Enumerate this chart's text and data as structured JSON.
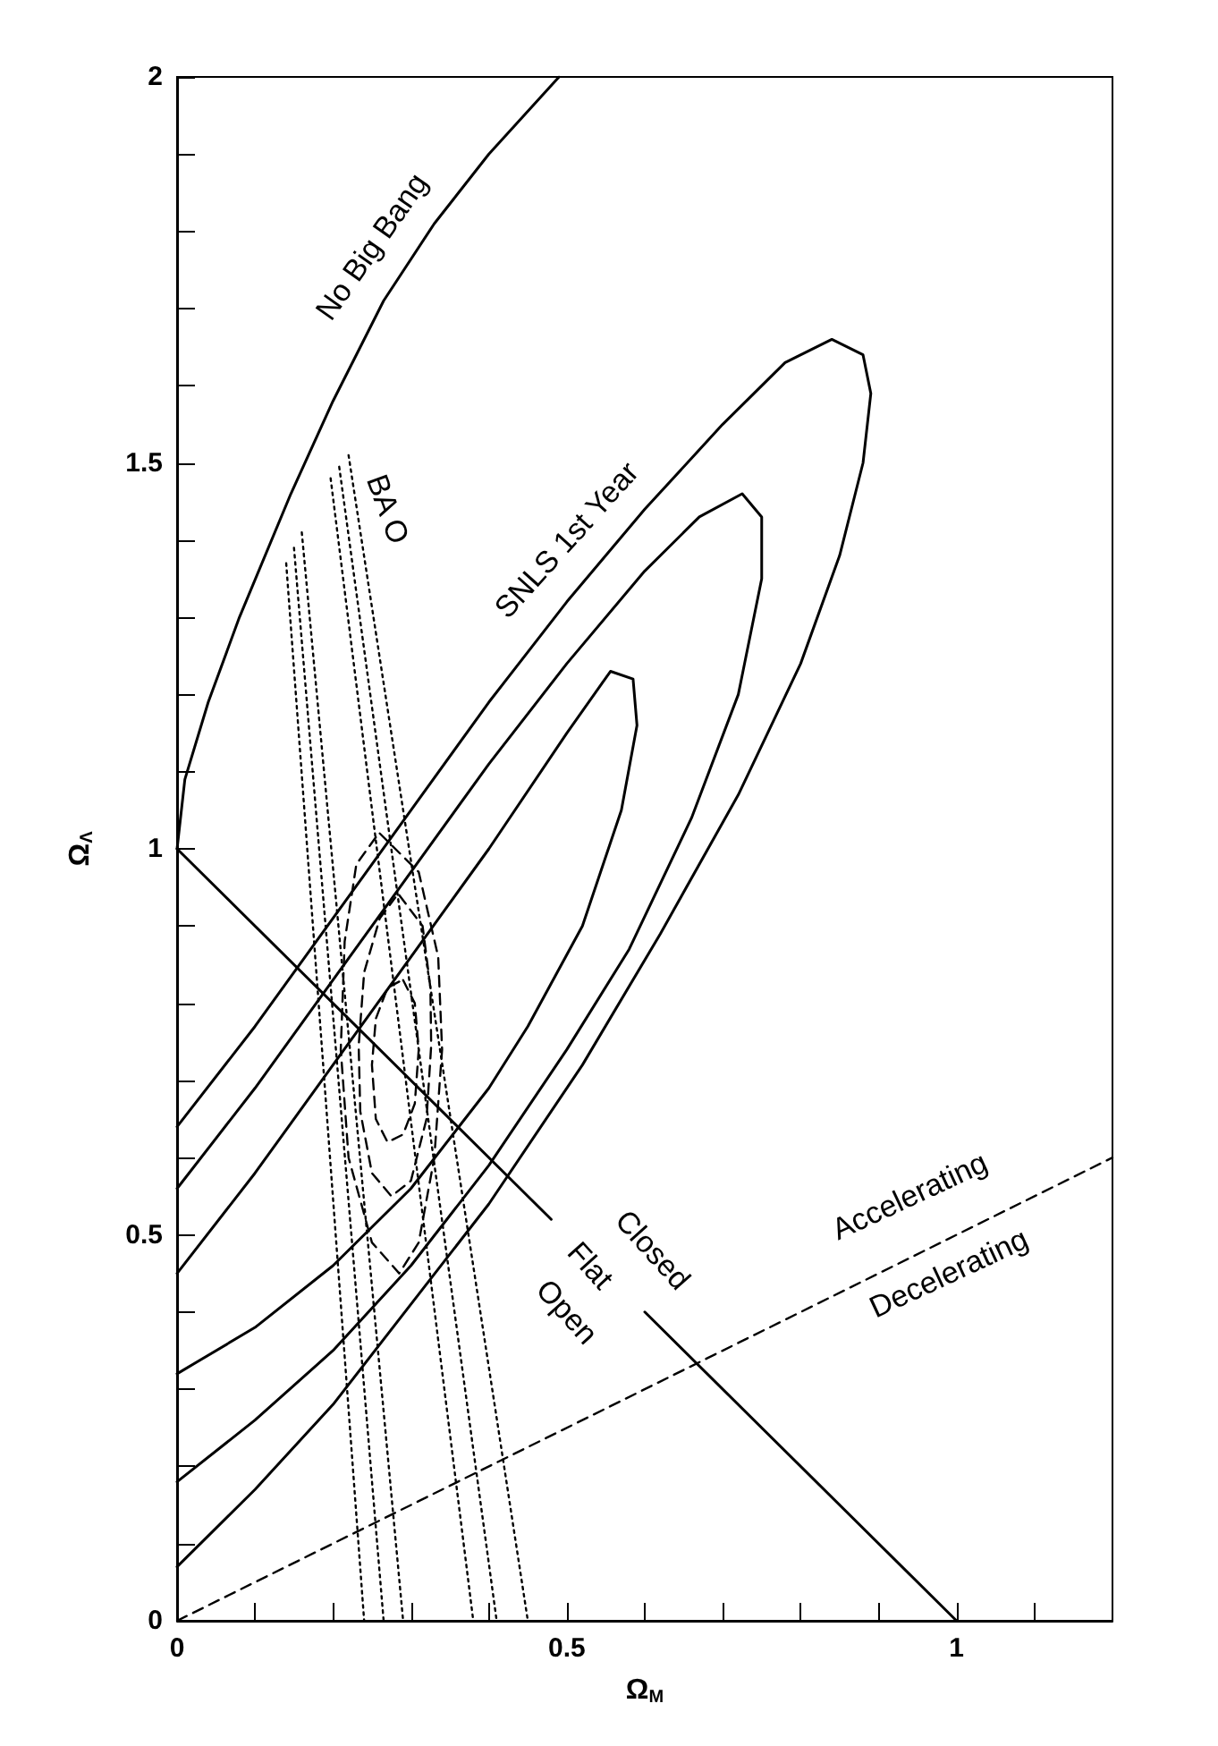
{
  "chart_data": {
    "type": "line",
    "xlabel": "Ω$_{M}$",
    "ylabel": "Ω$_{Λ}$",
    "xlim": [
      0,
      1.2
    ],
    "ylim": [
      0,
      2
    ],
    "xticks": [
      0,
      {
        "value": 0.1,
        "label": null
      },
      {
        "value": 0.2,
        "label": null
      },
      {
        "value": 0.3,
        "label": null
      },
      {
        "value": 0.4,
        "label": null
      },
      0.5,
      {
        "value": 0.6,
        "label": null
      },
      {
        "value": 0.7,
        "label": null
      },
      {
        "value": 0.8,
        "label": null
      },
      {
        "value": 0.9,
        "label": null
      },
      1,
      {
        "value": 1.1,
        "label": null
      }
    ],
    "yticks": [
      0,
      {
        "value": 0.1,
        "label": null
      },
      {
        "value": 0.2,
        "label": null
      },
      {
        "value": 0.3,
        "label": null
      },
      {
        "value": 0.4,
        "label": null
      },
      0.5,
      {
        "value": 0.6,
        "label": null
      },
      {
        "value": 0.7,
        "label": null
      },
      {
        "value": 0.8,
        "label": null
      },
      {
        "value": 0.9,
        "label": null
      },
      1,
      {
        "value": 1.1,
        "label": null
      },
      {
        "value": 1.2,
        "label": null
      },
      {
        "value": 1.3,
        "label": null
      },
      {
        "value": 1.4,
        "label": null
      },
      1.5,
      {
        "value": 1.6,
        "label": null
      },
      {
        "value": 1.7,
        "label": null
      },
      {
        "value": 1.8,
        "label": null
      },
      {
        "value": 1.9,
        "label": null
      },
      2
    ],
    "marker": "none",
    "series": [
      {
        "color": "#000000",
        "line_style": "solid",
        "x": [
          0,
          0.01,
          0.04,
          0.08,
          0.146,
          0.2,
          0.265,
          0.33,
          0.4,
          0.49
        ],
        "values": [
          1.0,
          1.09,
          1.19,
          1.3,
          1.46,
          1.58,
          1.71,
          1.81,
          1.9,
          2.0
        ]
      },
      {
        "color": "#000000",
        "line_style": "solid",
        "x": [
          0,
          0.48,
          0.54,
          0.6,
          1
        ],
        "values": [
          1,
          0.52,
          null,
          0.4,
          0
        ]
      },
      {
        "color": "#000000",
        "line_style": "dashed",
        "x": [
          0,
          1.2
        ],
        "values": [
          0,
          0.6
        ]
      },
      {
        "color": "#000000",
        "line_style": "solid",
        "x": [
          0,
          0.1,
          0.2,
          0.3,
          0.4,
          0.5,
          0.6,
          0.7,
          0.78,
          0.84,
          0.88,
          0.89,
          0.88,
          0.85,
          0.8,
          0.72,
          0.62,
          0.52,
          0.4,
          0.3,
          0.2,
          0.1,
          0
        ],
        "values": [
          0.64,
          0.77,
          0.91,
          1.05,
          1.19,
          1.32,
          1.44,
          1.55,
          1.63,
          1.66,
          1.64,
          1.59,
          1.5,
          1.38,
          1.24,
          1.07,
          0.89,
          0.72,
          0.54,
          0.41,
          0.28,
          0.17,
          0.07
        ]
      },
      {
        "color": "#000000",
        "line_style": "solid",
        "x": [
          0,
          0.1,
          0.2,
          0.3,
          0.4,
          0.5,
          0.6,
          0.67,
          0.725,
          0.75,
          0.75,
          0.72,
          0.66,
          0.58,
          0.5,
          0.4,
          0.3,
          0.2,
          0.1,
          0
        ],
        "values": [
          0.56,
          0.69,
          0.83,
          0.97,
          1.11,
          1.24,
          1.36,
          1.43,
          1.46,
          1.43,
          1.35,
          1.2,
          1.04,
          0.87,
          0.74,
          0.59,
          0.46,
          0.35,
          0.26,
          0.18
        ]
      },
      {
        "color": "#000000",
        "line_style": "solid",
        "x": [
          0,
          0.1,
          0.2,
          0.3,
          0.4,
          0.5,
          0.556,
          0.585,
          0.59,
          0.57,
          0.52,
          0.45,
          0.4,
          0.3,
          0.2,
          0.1,
          0
        ],
        "values": [
          0.45,
          0.58,
          0.72,
          0.86,
          1.0,
          1.15,
          1.23,
          1.22,
          1.16,
          1.05,
          0.9,
          0.77,
          0.69,
          0.56,
          0.46,
          0.38,
          0.32
        ]
      },
      {
        "color": "#000000",
        "line_style": "dotted",
        "x": [
          0.14,
          0.24
        ],
        "values": [
          1.37,
          0
        ]
      },
      {
        "color": "#000000",
        "line_style": "dotted",
        "x": [
          0.15,
          0.265
        ],
        "values": [
          1.39,
          0
        ]
      },
      {
        "color": "#000000",
        "line_style": "dotted",
        "x": [
          0.16,
          0.29
        ],
        "values": [
          1.41,
          0
        ]
      },
      {
        "color": "#000000",
        "line_style": "dotted",
        "x": [
          0.197,
          0.38
        ],
        "values": [
          1.48,
          0
        ]
      },
      {
        "color": "#000000",
        "line_style": "dotted",
        "x": [
          0.208,
          0.41
        ],
        "values": [
          1.495,
          0
        ]
      },
      {
        "color": "#000000",
        "line_style": "dotted",
        "x": [
          0.22,
          0.45
        ],
        "values": [
          1.51,
          0
        ]
      },
      {
        "color": "#000000",
        "line_style": "dashed",
        "x": [
          0.26,
          0.31,
          0.335,
          0.34,
          0.33,
          0.31,
          0.285,
          0.25,
          0.22,
          0.21,
          0.215,
          0.23,
          0.255
        ],
        "values": [
          1.02,
          0.97,
          0.86,
          0.74,
          0.6,
          0.49,
          0.45,
          0.49,
          0.6,
          0.74,
          0.88,
          0.98,
          1.015
        ]
      },
      {
        "color": "#000000",
        "line_style": "dashed",
        "x": [
          0.285,
          0.315,
          0.325,
          0.326,
          0.32,
          0.3,
          0.275,
          0.25,
          0.235,
          0.233,
          0.24,
          0.26,
          0.28
        ],
        "values": [
          0.94,
          0.9,
          0.82,
          0.745,
          0.65,
          0.57,
          0.55,
          0.58,
          0.66,
          0.745,
          0.84,
          0.91,
          0.937
        ]
      },
      {
        "color": "#000000",
        "line_style": "dashed",
        "x": [
          0.29,
          0.305,
          0.31,
          0.305,
          0.29,
          0.27,
          0.255,
          0.25,
          0.255,
          0.27,
          0.285
        ],
        "values": [
          0.83,
          0.8,
          0.74,
          0.67,
          0.63,
          0.62,
          0.65,
          0.72,
          0.78,
          0.82,
          0.828
        ]
      }
    ],
    "annotations": [
      "No Big Bang",
      "SNLS 1st Year",
      "BA O",
      "Closed",
      "Flat",
      "Open",
      "Accelerating",
      "Decelerating"
    ]
  }
}
